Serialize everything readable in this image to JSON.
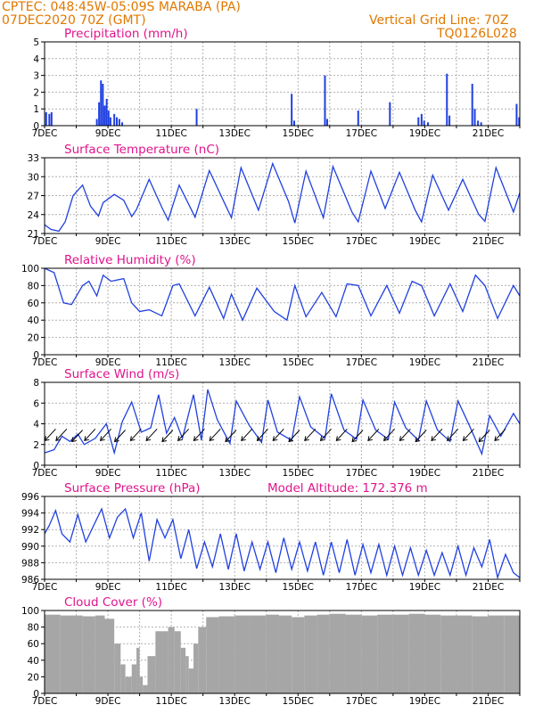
{
  "header": {
    "line1": "CPTEC:  048:45W-05:09S  MARABA (PA)",
    "line2": "07DEC2020 70Z (GMT)",
    "right1": "Vertical Grid Line: 70Z",
    "right2": "TQ0126L028"
  },
  "colors": {
    "header": "#e07800",
    "titles": "#e0148c",
    "series": "#2040e0",
    "cloud": "#a6a6a6",
    "grid": "#b0b0b0"
  },
  "chart_data": [
    {
      "type": "bar",
      "title": "Precipitation (mm/h)",
      "ylim": [
        0,
        5
      ],
      "yticks": [
        "0",
        "1",
        "2",
        "3",
        "4",
        "5"
      ],
      "xticks": [
        "7DEC",
        "9DEC",
        "11DEC",
        "13DEC",
        "15DEC",
        "17DEC",
        "19DEC",
        "21DEC"
      ],
      "xrange_days": [
        0,
        15
      ],
      "bars": [
        [
          0.05,
          0.8
        ],
        [
          0.15,
          0.7
        ],
        [
          0.22,
          0.8
        ],
        [
          1.65,
          0.4
        ],
        [
          1.72,
          1.4
        ],
        [
          1.78,
          2.7
        ],
        [
          1.84,
          2.5
        ],
        [
          1.9,
          1.2
        ],
        [
          1.96,
          1.6
        ],
        [
          2.02,
          0.9
        ],
        [
          2.08,
          0.5
        ],
        [
          2.2,
          0.7
        ],
        [
          2.28,
          0.5
        ],
        [
          2.36,
          0.4
        ],
        [
          2.45,
          0.2
        ],
        [
          4.8,
          1.0
        ],
        [
          7.8,
          1.9
        ],
        [
          7.88,
          0.3
        ],
        [
          8.85,
          3.0
        ],
        [
          8.92,
          0.4
        ],
        [
          9.9,
          0.9
        ],
        [
          10.9,
          1.4
        ],
        [
          11.8,
          0.5
        ],
        [
          11.9,
          0.7
        ],
        [
          11.98,
          0.3
        ],
        [
          12.1,
          0.2
        ],
        [
          12.7,
          3.1
        ],
        [
          12.78,
          0.6
        ],
        [
          13.5,
          2.5
        ],
        [
          13.58,
          1.0
        ],
        [
          13.68,
          0.3
        ],
        [
          13.78,
          0.2
        ],
        [
          14.9,
          1.3
        ],
        [
          14.98,
          0.5
        ]
      ]
    },
    {
      "type": "line",
      "title": "Surface Temperature (nC)",
      "ylim": [
        20.5,
        33.5
      ],
      "yticks": [
        "21",
        "24",
        "27",
        "30",
        "33"
      ],
      "xticks": [
        "7DEC",
        "9DEC",
        "11DEC",
        "13DEC",
        "15DEC",
        "17DEC",
        "19DEC",
        "21DEC"
      ],
      "x_days": [
        0,
        0.2,
        0.45,
        0.65,
        0.9,
        1.2,
        1.45,
        1.7,
        1.85,
        2.2,
        2.5,
        2.75,
        2.9,
        3.3,
        3.7,
        3.9,
        4.25,
        4.75,
        5.2,
        5.7,
        5.9,
        6.2,
        6.75,
        7.2,
        7.7,
        7.9,
        8.25,
        8.8,
        9.1,
        9.7,
        9.9,
        10.3,
        10.75,
        11.2,
        11.7,
        11.9,
        12.25,
        12.75,
        13.2,
        13.7,
        13.9,
        14.25,
        14.8,
        15
      ],
      "y": [
        22,
        21.2,
        20.9,
        22.5,
        27,
        28.8,
        25.2,
        23.5,
        25.8,
        27.2,
        26.2,
        23.4,
        24.6,
        29.8,
        25,
        22.8,
        28.8,
        23.3,
        31.3,
        25.5,
        23.2,
        31.8,
        24.5,
        32.5,
        26,
        22.3,
        31.2,
        23.2,
        32,
        24.2,
        22.5,
        31.2,
        24.8,
        31,
        24.5,
        22.5,
        30.5,
        24.5,
        29.8,
        23.8,
        22.6,
        31.8,
        24.2,
        27.5
      ]
    },
    {
      "type": "line",
      "title": "Relative Humidity (%)",
      "ylim": [
        0,
        100
      ],
      "yticks": [
        "0",
        "20",
        "40",
        "60",
        "80",
        "100"
      ],
      "xticks": [
        "7DEC",
        "9DEC",
        "11DEC",
        "13DEC",
        "15DEC",
        "17DEC",
        "19DEC",
        "21DEC"
      ],
      "x_days": [
        0,
        0.3,
        0.6,
        0.85,
        1.2,
        1.4,
        1.65,
        1.85,
        2.1,
        2.5,
        2.75,
        3,
        3.3,
        3.7,
        4.05,
        4.25,
        4.75,
        5.2,
        5.65,
        5.9,
        6.25,
        6.7,
        7.25,
        7.65,
        7.9,
        8.25,
        8.75,
        9.2,
        9.55,
        9.9,
        10.3,
        10.8,
        11.2,
        11.6,
        11.9,
        12.3,
        12.8,
        13.2,
        13.6,
        13.9,
        14.3,
        14.8,
        15
      ],
      "y": [
        100,
        95,
        60,
        58,
        80,
        85,
        68,
        92,
        85,
        88,
        60,
        50,
        52,
        45,
        80,
        82,
        45,
        78,
        42,
        70,
        40,
        77,
        50,
        40,
        80,
        44,
        72,
        44,
        82,
        80,
        45,
        80,
        48,
        85,
        80,
        45,
        82,
        50,
        92,
        80,
        42,
        80,
        68
      ]
    },
    {
      "type": "line",
      "title": "Surface Wind (m/s)",
      "ylim": [
        0,
        8
      ],
      "yticks": [
        "0",
        "2",
        "4",
        "6",
        "8"
      ],
      "xticks": [
        "7DEC",
        "9DEC",
        "11DEC",
        "13DEC",
        "15DEC",
        "17DEC",
        "19DEC",
        "21DEC"
      ],
      "x_days": [
        0,
        0.3,
        0.55,
        0.8,
        1.05,
        1.25,
        1.6,
        1.95,
        2.2,
        2.45,
        2.75,
        3.05,
        3.35,
        3.6,
        3.85,
        4.1,
        4.35,
        4.7,
        4.95,
        5.15,
        5.45,
        5.85,
        6.05,
        6.45,
        6.85,
        7.05,
        7.35,
        7.8,
        8.05,
        8.4,
        8.85,
        9.05,
        9.45,
        9.85,
        10.05,
        10.45,
        10.85,
        11.05,
        11.4,
        11.8,
        12.05,
        12.4,
        12.8,
        13.05,
        13.4,
        13.8,
        14.05,
        14.4,
        14.8,
        15
      ],
      "y": [
        1.2,
        1.5,
        2.8,
        2.3,
        3,
        2,
        2.6,
        4,
        1.2,
        4.2,
        6.1,
        3.2,
        3.6,
        6.8,
        3.1,
        4.6,
        2.6,
        6.8,
        2.4,
        7.3,
        4.4,
        2.1,
        6.2,
        3.9,
        2.2,
        6.3,
        3.2,
        2.4,
        6.6,
        3.7,
        2.6,
        6.9,
        3.4,
        2.5,
        6.3,
        3.4,
        2.5,
        6.1,
        3.6,
        2.4,
        6.2,
        3.4,
        2.3,
        6.2,
        3.9,
        1.1,
        4.8,
        2.8,
        5,
        4
      ]
    },
    {
      "type": "line",
      "title": "Surface Pressure (hPa)",
      "annotation": "Model Altitude: 172.376 m",
      "ylim": [
        986,
        996
      ],
      "yticks": [
        "986",
        "988",
        "990",
        "992",
        "994",
        "996"
      ],
      "xticks": [
        "7DEC",
        "9DEC",
        "11DEC",
        "13DEC",
        "15DEC",
        "17DEC",
        "19DEC",
        "21DEC"
      ],
      "x_days": [
        0,
        0.15,
        0.35,
        0.55,
        0.8,
        1.05,
        1.3,
        1.55,
        1.8,
        2.05,
        2.3,
        2.55,
        2.8,
        3.05,
        3.3,
        3.55,
        3.8,
        4.05,
        4.3,
        4.55,
        4.8,
        5.05,
        5.3,
        5.55,
        5.8,
        6.05,
        6.3,
        6.55,
        6.8,
        7.05,
        7.3,
        7.55,
        7.8,
        8.05,
        8.3,
        8.55,
        8.8,
        9.05,
        9.3,
        9.55,
        9.8,
        10.05,
        10.3,
        10.55,
        10.8,
        11.05,
        11.3,
        11.55,
        11.8,
        12.05,
        12.3,
        12.55,
        12.8,
        13.05,
        13.3,
        13.55,
        13.8,
        14.05,
        14.3,
        14.55,
        14.8,
        15
      ],
      "y": [
        991.5,
        992.5,
        994.3,
        991.5,
        990.5,
        993.8,
        990.5,
        992.5,
        994.5,
        991,
        993.5,
        994.5,
        991,
        994,
        988.2,
        993.2,
        991,
        993.2,
        988.5,
        992,
        987.3,
        990.5,
        987.5,
        991.5,
        987.2,
        991.5,
        987,
        990.5,
        987.2,
        990.5,
        986.8,
        991,
        987.2,
        990.5,
        987,
        990.5,
        986.5,
        990.5,
        986.8,
        990.8,
        986.5,
        990.2,
        986.8,
        990.2,
        986.5,
        990,
        986.5,
        989.8,
        986.5,
        989.5,
        986.5,
        989.2,
        986.5,
        990,
        986.5,
        989.8,
        987.5,
        990.8,
        986.2,
        989,
        986.8,
        986.2
      ]
    },
    {
      "type": "bar",
      "title": "Cloud Cover (%)",
      "ylim": [
        0,
        100
      ],
      "yticks": [
        "0",
        "20",
        "40",
        "60",
        "80",
        "100"
      ],
      "xticks": [
        "7DEC",
        "9DEC",
        "11DEC",
        "13DEC",
        "15DEC",
        "17DEC",
        "19DEC",
        "21DEC"
      ],
      "x_days": [
        0,
        0.5,
        1.2,
        1.6,
        1.9,
        2.2,
        2.4,
        2.55,
        2.75,
        2.9,
        3.0,
        3.1,
        3.25,
        3.5,
        3.9,
        4.1,
        4.3,
        4.45,
        4.55,
        4.7,
        4.85,
        5.1,
        5.5,
        6.0,
        6.5,
        7.0,
        7.4,
        7.8,
        8.2,
        8.6,
        9.0,
        9.5,
        10.0,
        10.5,
        11.0,
        11.5,
        12.0,
        12.5,
        13.0,
        13.5,
        14.0,
        14.5,
        15.0
      ],
      "values": [
        95,
        94,
        93,
        94,
        90,
        60,
        35,
        20,
        35,
        55,
        20,
        10,
        45,
        75,
        80,
        75,
        55,
        45,
        30,
        60,
        80,
        92,
        93,
        94,
        94,
        95,
        94,
        92,
        94,
        95,
        96,
        95,
        94,
        95,
        95,
        96,
        95,
        94,
        94,
        93,
        94,
        94,
        96
      ]
    }
  ],
  "wind_arrows": {
    "x_days": [
      0.35,
      0.7,
      1.2,
      1.6,
      2.1,
      2.55,
      3.05,
      3.55,
      4.05,
      4.55,
      5.05,
      5.55,
      6.05,
      6.55,
      7.05,
      7.55,
      8.05,
      8.55,
      9.05,
      9.55,
      10.05,
      10.55,
      11.05,
      11.55,
      12.05,
      12.55,
      13.05,
      13.55,
      14.05,
      14.55
    ],
    "y_ms": [
      3.5,
      3.5,
      3.4,
      3.5,
      3.5,
      3.4,
      3.5,
      3.5,
      3.4,
      3.5,
      3.5,
      3.5,
      3.4,
      3.5,
      3.5,
      3.5,
      3.4,
      3.5,
      3.5,
      3.5,
      3.4,
      3.5,
      3.5,
      3.5,
      3.4,
      3.5,
      3.5,
      3.5,
      3.4,
      3.5
    ]
  }
}
